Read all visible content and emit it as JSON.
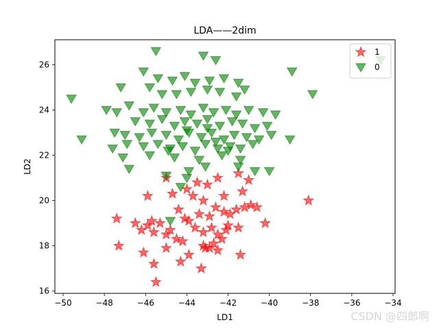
{
  "chart_data": {
    "type": "scatter",
    "title": "LDA——2dim",
    "xlabel": "LD1",
    "ylabel": "LD2",
    "xlim": [
      -50.4,
      -33.9
    ],
    "ylim": [
      15.9,
      27.1
    ],
    "xticks": [
      -50,
      -48,
      -46,
      -44,
      -42,
      -40,
      -38,
      -36,
      -34
    ],
    "yticks": [
      16,
      18,
      20,
      22,
      24,
      26
    ],
    "legend_position": "top-right",
    "grid": false,
    "series": [
      {
        "name": "1",
        "marker": "star",
        "color": "#ff0000",
        "points": [
          [
            -45.0,
            21.0
          ],
          [
            -44.0,
            20.5
          ],
          [
            -43.5,
            20.8
          ],
          [
            -43.0,
            20.7
          ],
          [
            -42.5,
            21.0
          ],
          [
            -41.5,
            21.2
          ],
          [
            -41.0,
            20.9
          ],
          [
            -45.9,
            20.2
          ],
          [
            -44.7,
            20.3
          ],
          [
            -43.7,
            20.2
          ],
          [
            -43.2,
            20.0
          ],
          [
            -42.2,
            20.2
          ],
          [
            -41.3,
            20.4
          ],
          [
            -38.1,
            20.0
          ],
          [
            -47.4,
            19.2
          ],
          [
            -46.5,
            19.0
          ],
          [
            -45.7,
            19.1
          ],
          [
            -45.3,
            19.0
          ],
          [
            -44.4,
            19.6
          ],
          [
            -43.9,
            19.1
          ],
          [
            -43.4,
            19.4
          ],
          [
            -42.9,
            19.3
          ],
          [
            -42.6,
            19.7
          ],
          [
            -42.2,
            19.5
          ],
          [
            -41.9,
            19.4
          ],
          [
            -41.6,
            19.6
          ],
          [
            -41.2,
            19.7
          ],
          [
            -40.9,
            19.8
          ],
          [
            -40.6,
            19.7
          ],
          [
            -40.2,
            19.0
          ],
          [
            -46.2,
            18.7
          ],
          [
            -45.9,
            18.9
          ],
          [
            -45.6,
            18.6
          ],
          [
            -45.0,
            18.5
          ],
          [
            -44.8,
            18.7
          ],
          [
            -44.5,
            18.3
          ],
          [
            -44.2,
            18.2
          ],
          [
            -43.6,
            18.8
          ],
          [
            -43.2,
            18.6
          ],
          [
            -42.8,
            18.8
          ],
          [
            -42.5,
            18.5
          ],
          [
            -42.3,
            18.3
          ],
          [
            -42.0,
            18.9
          ],
          [
            -41.5,
            18.8
          ],
          [
            -47.3,
            18.0
          ],
          [
            -46.1,
            17.7
          ],
          [
            -45.0,
            17.9
          ],
          [
            -44.3,
            17.3
          ],
          [
            -43.9,
            17.6
          ],
          [
            -43.2,
            18.0
          ],
          [
            -42.9,
            17.9
          ],
          [
            -42.5,
            17.8
          ],
          [
            -41.4,
            17.6
          ],
          [
            -45.6,
            17.2
          ],
          [
            -43.3,
            17.0
          ],
          [
            -45.5,
            16.4
          ],
          [
            -43.1,
            17.9
          ],
          [
            -42.7,
            18.1
          ],
          [
            -42.1,
            18.7
          ],
          [
            -44.1,
            19.2
          ]
        ]
      },
      {
        "name": "0",
        "marker": "triangle_down",
        "color": "#008000",
        "points": [
          [
            -45.5,
            26.6
          ],
          [
            -43.2,
            26.4
          ],
          [
            -42.6,
            26.2
          ],
          [
            -34.6,
            26.2
          ],
          [
            -46.1,
            25.7
          ],
          [
            -38.9,
            25.7
          ],
          [
            -45.4,
            25.4
          ],
          [
            -44.7,
            25.3
          ],
          [
            -44.1,
            25.5
          ],
          [
            -43.6,
            25.2
          ],
          [
            -42.9,
            25.3
          ],
          [
            -42.2,
            25.4
          ],
          [
            -41.5,
            25.2
          ],
          [
            -49.6,
            24.5
          ],
          [
            -47.2,
            25.0
          ],
          [
            -45.8,
            25.0
          ],
          [
            -45.2,
            24.7
          ],
          [
            -44.5,
            24.7
          ],
          [
            -43.8,
            24.8
          ],
          [
            -43.0,
            24.9
          ],
          [
            -42.4,
            24.8
          ],
          [
            -41.6,
            24.6
          ],
          [
            -41.2,
            24.9
          ],
          [
            -37.9,
            24.7
          ],
          [
            -47.9,
            24.0
          ],
          [
            -47.4,
            23.9
          ],
          [
            -46.8,
            24.2
          ],
          [
            -46.1,
            23.9
          ],
          [
            -45.6,
            24.1
          ],
          [
            -45.0,
            23.9
          ],
          [
            -44.3,
            24.0
          ],
          [
            -43.8,
            23.8
          ],
          [
            -43.2,
            24.1
          ],
          [
            -42.7,
            23.9
          ],
          [
            -42.1,
            24.0
          ],
          [
            -41.6,
            23.8
          ],
          [
            -41.0,
            24.0
          ],
          [
            -40.3,
            23.9
          ],
          [
            -39.7,
            23.8
          ],
          [
            -46.5,
            23.5
          ],
          [
            -45.8,
            23.4
          ],
          [
            -45.2,
            23.6
          ],
          [
            -44.6,
            23.3
          ],
          [
            -44.1,
            23.5
          ],
          [
            -43.5,
            23.4
          ],
          [
            -43.0,
            23.6
          ],
          [
            -42.4,
            23.3
          ],
          [
            -41.8,
            23.5
          ],
          [
            -41.3,
            23.4
          ],
          [
            -40.7,
            23.2
          ],
          [
            -40.1,
            23.3
          ],
          [
            -49.1,
            22.7
          ],
          [
            -47.5,
            23.0
          ],
          [
            -47.0,
            22.9
          ],
          [
            -46.3,
            22.8
          ],
          [
            -45.7,
            23.0
          ],
          [
            -45.0,
            22.9
          ],
          [
            -44.4,
            22.7
          ],
          [
            -43.9,
            23.0
          ],
          [
            -43.3,
            22.8
          ],
          [
            -42.8,
            23.0
          ],
          [
            -42.2,
            22.7
          ],
          [
            -41.7,
            22.9
          ],
          [
            -41.1,
            22.8
          ],
          [
            -40.5,
            22.7
          ],
          [
            -39.9,
            22.9
          ],
          [
            -39.0,
            22.7
          ],
          [
            -47.6,
            22.3
          ],
          [
            -46.9,
            22.5
          ],
          [
            -46.1,
            22.4
          ],
          [
            -45.4,
            22.5
          ],
          [
            -44.8,
            22.3
          ],
          [
            -44.2,
            22.4
          ],
          [
            -43.6,
            22.2
          ],
          [
            -43.1,
            22.5
          ],
          [
            -42.5,
            22.3
          ],
          [
            -41.9,
            22.4
          ],
          [
            -41.4,
            22.3
          ],
          [
            -40.8,
            22.5
          ],
          [
            -47.1,
            21.9
          ],
          [
            -45.8,
            22.0
          ],
          [
            -44.6,
            21.9
          ],
          [
            -43.4,
            21.8
          ],
          [
            -42.3,
            22.0
          ],
          [
            -41.4,
            21.8
          ],
          [
            -46.8,
            21.4
          ],
          [
            -45.0,
            21.1
          ],
          [
            -43.9,
            21.3
          ],
          [
            -43.1,
            21.5
          ],
          [
            -41.5,
            21.5
          ],
          [
            -40.7,
            21.3
          ],
          [
            -40.0,
            21.3
          ],
          [
            -44.3,
            20.6
          ],
          [
            -44.8,
            19.1
          ],
          [
            -44.0,
            21.0
          ],
          [
            -43.0,
            23.2
          ],
          [
            -42.6,
            22.6
          ],
          [
            -44.9,
            22.2
          ],
          [
            -42.0,
            22.2
          ],
          [
            -44.0,
            23.1
          ]
        ]
      }
    ]
  },
  "watermark": "CSDN @四郎啊"
}
